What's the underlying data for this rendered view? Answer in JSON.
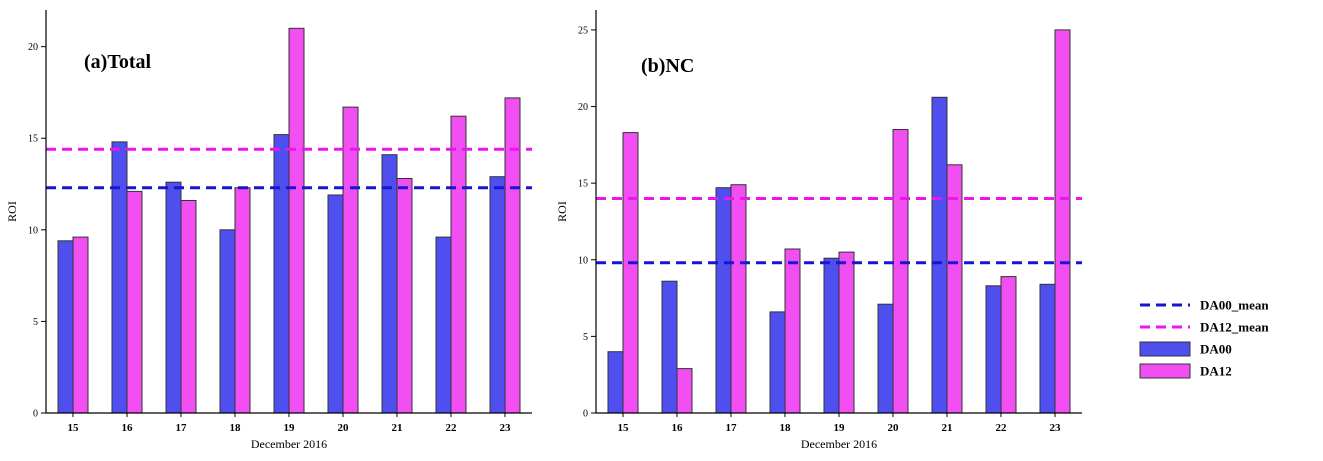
{
  "colors": {
    "DA00": "#4f4ff0",
    "DA12": "#f24ff2",
    "DA00_mean": "#1515d8",
    "DA12_mean": "#ee14ee",
    "bar_edge": "#333333"
  },
  "legend": {
    "placement": "right",
    "items": [
      {
        "label": "DA00_mean",
        "kind": "dash",
        "color": "#1515d8"
      },
      {
        "label": "DA12_mean",
        "kind": "dash",
        "color": "#ee14ee"
      },
      {
        "label": "DA00",
        "kind": "box",
        "color": "#4f4ff0"
      },
      {
        "label": "DA12",
        "kind": "box",
        "color": "#f24ff2"
      }
    ]
  },
  "chart_data": [
    {
      "type": "bar",
      "title": "(a)Total",
      "xlabel": "December 2016",
      "ylabel": "ROI",
      "ylim": [
        0,
        22
      ],
      "yticks": [
        0,
        5,
        10,
        15,
        20
      ],
      "categories": [
        "15",
        "16",
        "17",
        "18",
        "19",
        "20",
        "21",
        "22",
        "23"
      ],
      "series": [
        {
          "name": "DA00",
          "values": [
            9.4,
            14.8,
            12.6,
            10.0,
            15.2,
            11.9,
            14.1,
            9.6,
            12.9
          ]
        },
        {
          "name": "DA12",
          "values": [
            9.6,
            12.1,
            11.6,
            12.3,
            21.0,
            16.7,
            12.8,
            16.2,
            17.2
          ]
        }
      ],
      "reference_lines": [
        {
          "name": "DA00_mean",
          "value": 12.3
        },
        {
          "name": "DA12_mean",
          "value": 14.4
        }
      ],
      "grid": false
    },
    {
      "type": "bar",
      "title": "(b)NC",
      "xlabel": "December 2016",
      "ylabel": "ROI",
      "ylim": [
        0,
        26.3
      ],
      "yticks": [
        0,
        5,
        10,
        15,
        20,
        25
      ],
      "categories": [
        "15",
        "16",
        "17",
        "18",
        "19",
        "20",
        "21",
        "22",
        "23"
      ],
      "series": [
        {
          "name": "DA00",
          "values": [
            4.0,
            8.6,
            14.7,
            6.6,
            10.1,
            7.1,
            20.6,
            8.3,
            8.4
          ]
        },
        {
          "name": "DA12",
          "values": [
            18.3,
            2.9,
            14.9,
            10.7,
            10.5,
            18.5,
            16.2,
            8.9,
            25.0
          ]
        }
      ],
      "reference_lines": [
        {
          "name": "DA00_mean",
          "value": 9.8
        },
        {
          "name": "DA12_mean",
          "value": 14.0
        }
      ],
      "grid": false
    }
  ]
}
